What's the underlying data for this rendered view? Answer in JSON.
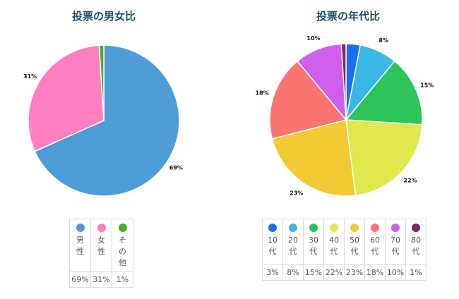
{
  "charts": [
    {
      "id": "gender",
      "title": "投票の男女比",
      "type": "pie",
      "slices": [
        {
          "label": "男性",
          "key_chars": [
            "男",
            "性"
          ],
          "value": 69,
          "display": "69%",
          "color": "#4e9cd6",
          "show_label": true
        },
        {
          "label": "女性",
          "key_chars": [
            "女",
            "性"
          ],
          "value": 31,
          "display": "31%",
          "color": "#fd7fbf",
          "show_label": true
        },
        {
          "label": "その他",
          "key_chars": [
            "そ",
            "の",
            "他"
          ],
          "value": 1,
          "display": "1%",
          "color": "#4caf2c",
          "show_label": false
        }
      ]
    },
    {
      "id": "age",
      "title": "投票の年代比",
      "type": "pie",
      "slices": [
        {
          "label": "10代",
          "key_chars": [
            "10",
            "代"
          ],
          "value": 3,
          "display": "3%",
          "color": "#1a6ff0",
          "show_label": false
        },
        {
          "label": "20代",
          "key_chars": [
            "20",
            "代"
          ],
          "value": 8,
          "display": "8%",
          "color": "#3ab8e6",
          "show_label": true
        },
        {
          "label": "30代",
          "key_chars": [
            "30",
            "代"
          ],
          "value": 15,
          "display": "15%",
          "color": "#2dc45a",
          "show_label": true
        },
        {
          "label": "40代",
          "key_chars": [
            "40",
            "代"
          ],
          "value": 22,
          "display": "22%",
          "color": "#dfe84d",
          "show_label": true
        },
        {
          "label": "50代",
          "key_chars": [
            "50",
            "代"
          ],
          "value": 23,
          "display": "23%",
          "color": "#f2ca33",
          "show_label": true
        },
        {
          "label": "60代",
          "key_chars": [
            "60",
            "代"
          ],
          "value": 18,
          "display": "18%",
          "color": "#fc7470",
          "show_label": true
        },
        {
          "label": "70代",
          "key_chars": [
            "70",
            "代"
          ],
          "value": 10,
          "display": "10%",
          "color": "#cf5eea",
          "show_label": true
        },
        {
          "label": "80代",
          "key_chars": [
            "80",
            "代"
          ],
          "value": 1,
          "display": "1%",
          "color": "#8b1f63",
          "show_label": false
        }
      ]
    }
  ],
  "chart_data": [
    {
      "type": "pie",
      "title": "投票の男女比",
      "categories": [
        "男性",
        "女性",
        "その他"
      ],
      "values": [
        69,
        31,
        1
      ],
      "unit": "%",
      "colors": [
        "#4e9cd6",
        "#fd7fbf",
        "#4caf2c"
      ],
      "legend": "bottom"
    },
    {
      "type": "pie",
      "title": "投票の年代比",
      "categories": [
        "10代",
        "20代",
        "30代",
        "40代",
        "50代",
        "60代",
        "70代",
        "80代"
      ],
      "values": [
        3,
        8,
        15,
        22,
        23,
        18,
        10,
        1
      ],
      "unit": "%",
      "colors": [
        "#1a6ff0",
        "#3ab8e6",
        "#2dc45a",
        "#dfe84d",
        "#f2ca33",
        "#fc7470",
        "#cf5eea",
        "#8b1f63"
      ],
      "legend": "bottom"
    }
  ]
}
